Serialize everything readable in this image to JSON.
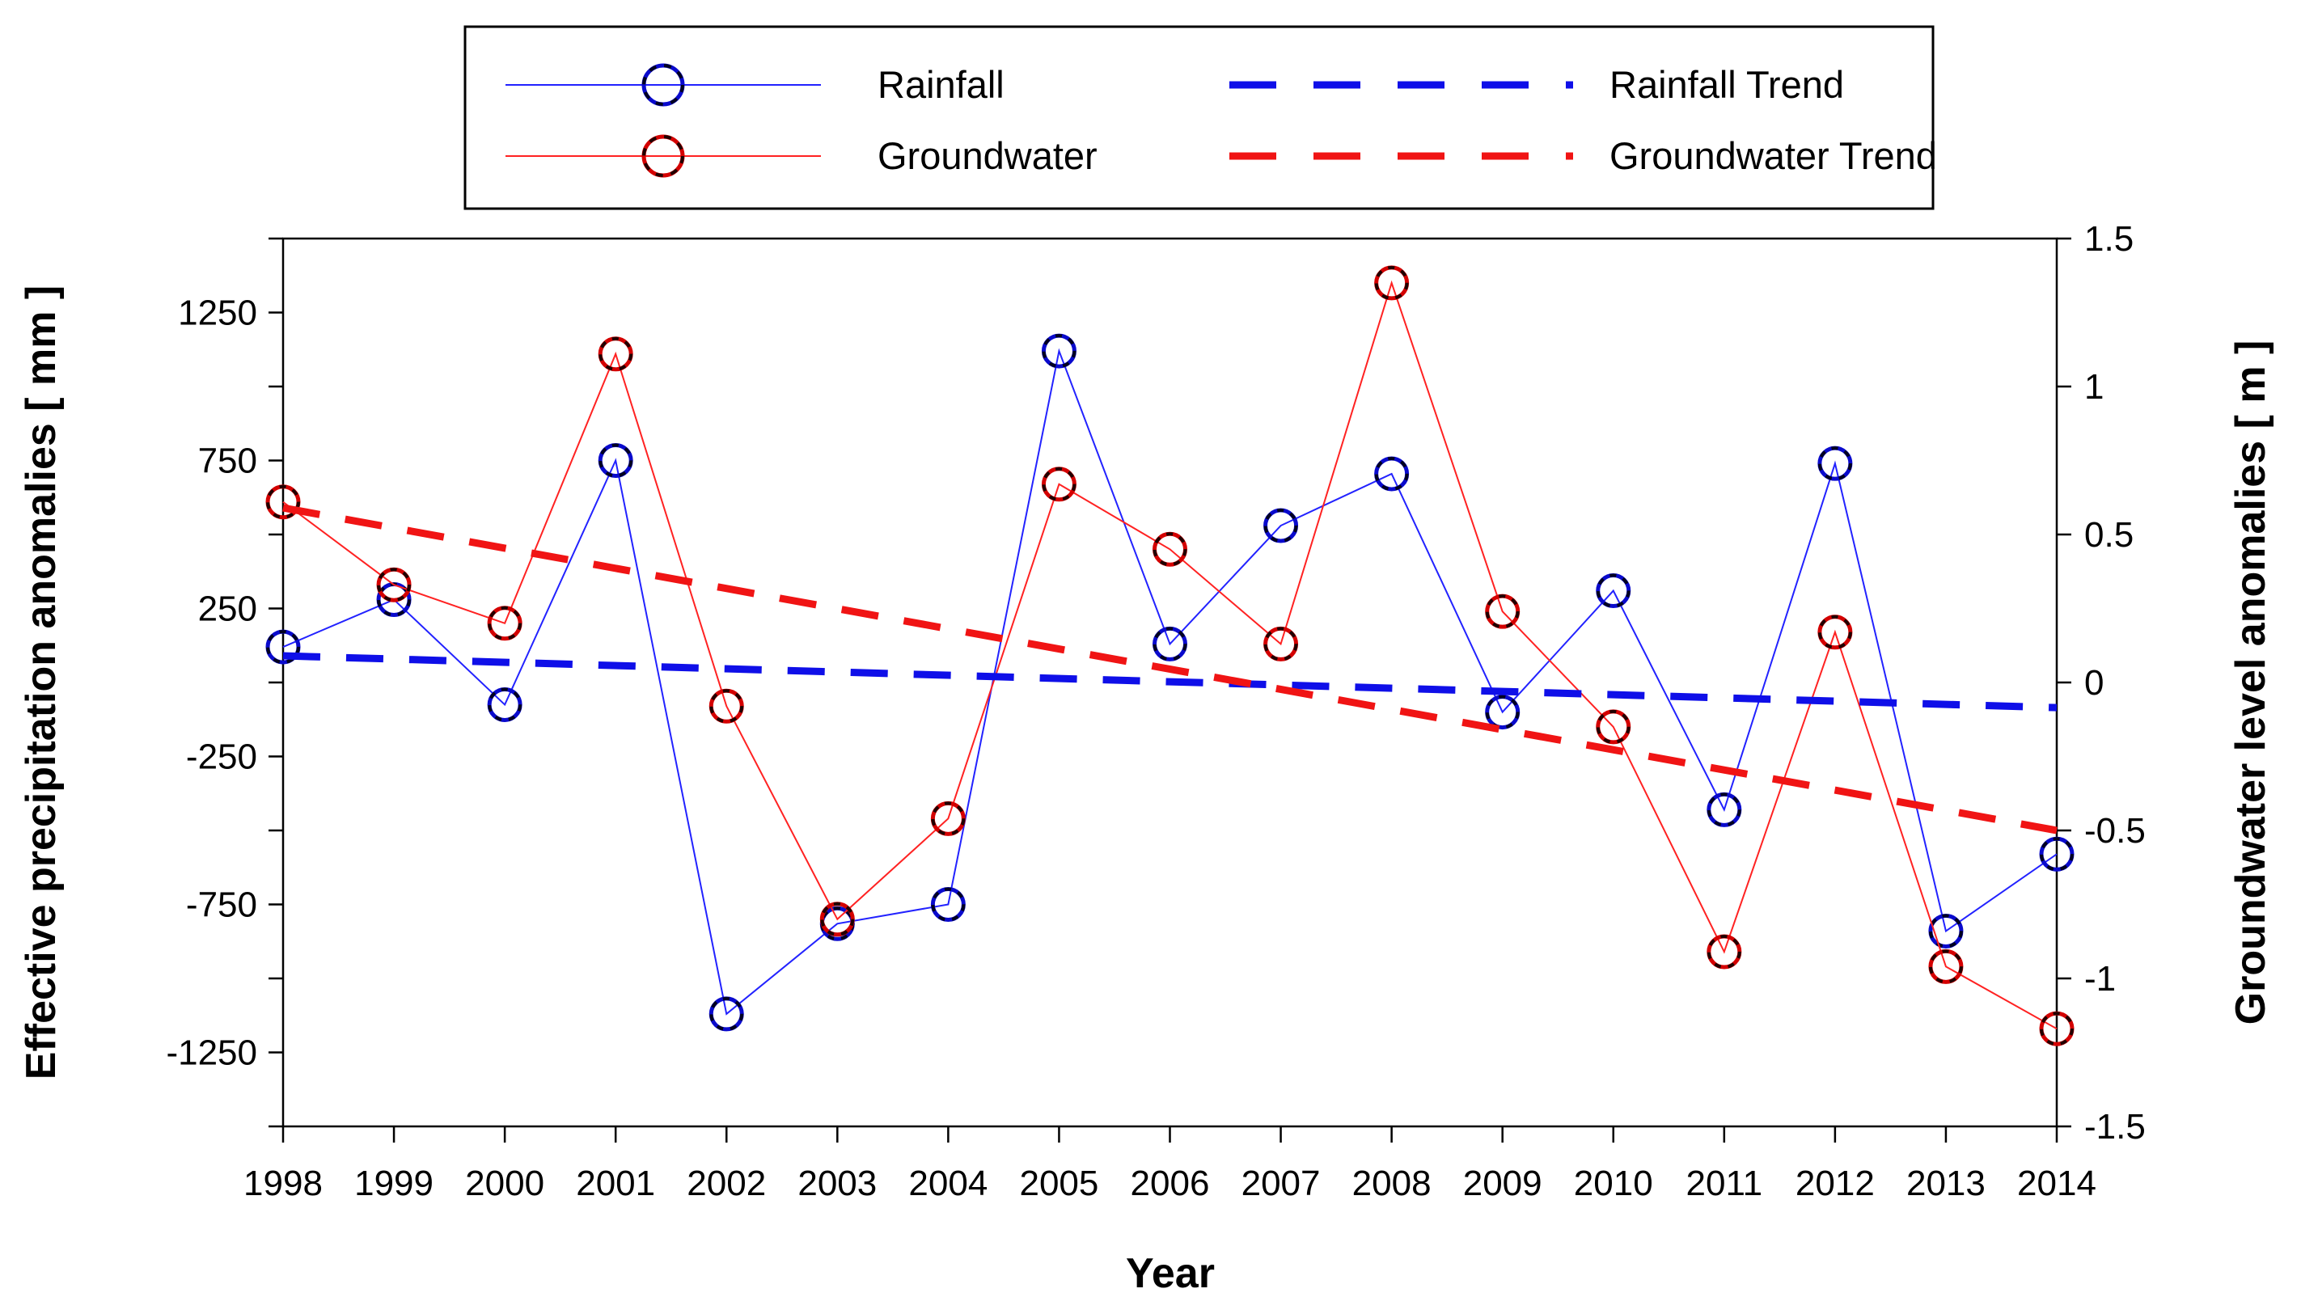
{
  "figure": {
    "background": "#ffffff"
  },
  "legend": {
    "position": "top-center",
    "items": [
      {
        "label": "Rainfall",
        "type": "line-with-circle-marker",
        "line_color": "#2222ff",
        "marker_color": "#0a0acd"
      },
      {
        "label": "Groundwater",
        "type": "line-with-circle-marker",
        "line_color": "#ff2222",
        "marker_color": "#d40000"
      },
      {
        "label": "Rainfall Trend",
        "type": "thick-dashed-line",
        "line_color": "#0f0fe8"
      },
      {
        "label": "Groundwater Trend",
        "type": "thick-dashed-line",
        "line_color": "#f01414"
      }
    ]
  },
  "chart_data": {
    "type": "line",
    "title": "",
    "xlabel": "Year",
    "ylabel_left": "Effective precipitation anomalies [ mm ]",
    "ylabel_right": "Groundwater level anomalies [ m ]",
    "x": [
      1998,
      1999,
      2000,
      2001,
      2002,
      2003,
      2004,
      2005,
      2006,
      2007,
      2008,
      2009,
      2010,
      2011,
      2012,
      2013,
      2014
    ],
    "series": [
      {
        "name": "Rainfall",
        "axis": "left",
        "units": "mm",
        "values": [
          120,
          280,
          -75,
          750,
          -1120,
          -815,
          -750,
          1120,
          130,
          530,
          705,
          -100,
          310,
          -430,
          740,
          -840,
          -580
        ]
      },
      {
        "name": "Groundwater",
        "axis": "right",
        "units": "m",
        "values": [
          0.61,
          0.33,
          0.2,
          1.11,
          -0.08,
          -0.8,
          -0.46,
          0.67,
          0.45,
          0.13,
          1.35,
          0.24,
          -0.15,
          -0.91,
          0.17,
          -0.96,
          -1.17
        ]
      },
      {
        "name": "Rainfall Trend",
        "axis": "left",
        "units": "mm",
        "trend": true,
        "x": [
          1998,
          2014
        ],
        "values": [
          90,
          -85
        ]
      },
      {
        "name": "Groundwater Trend",
        "axis": "right",
        "units": "m",
        "trend": true,
        "x": [
          1998,
          2014
        ],
        "values": [
          0.59,
          -0.5
        ]
      }
    ],
    "left_axis": {
      "range": [
        -1500,
        1500
      ],
      "tick_step": 250,
      "labeled_ticks": [
        1250,
        750,
        250,
        -250,
        -750,
        -1250
      ]
    },
    "right_axis": {
      "range": [
        -1.5,
        1.5
      ],
      "tick_step": 0.5,
      "labeled_ticks": [
        1.5,
        1,
        0.5,
        0,
        -0.5,
        -1,
        -1.5
      ]
    },
    "grid": false,
    "legend_position": "top"
  },
  "style": {
    "axis_color": "#000000",
    "series_line_width": 2,
    "marker_radius": 19,
    "marker_stroke_width": 5,
    "trend_line_width": 9,
    "trend_dash": "46 32"
  }
}
